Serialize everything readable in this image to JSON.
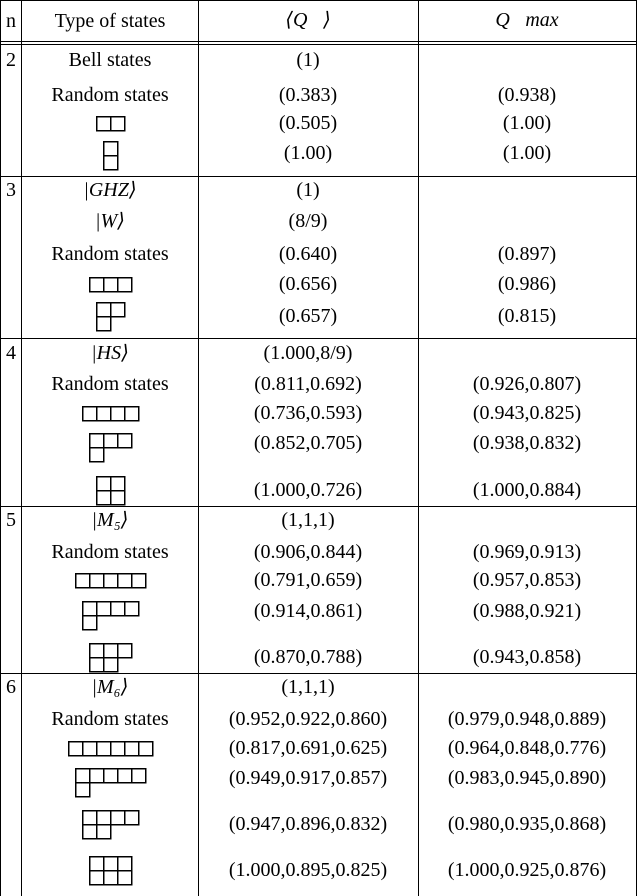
{
  "header": {
    "n": "n",
    "type": "Type of states",
    "q": "⟨Q⃗⟩",
    "qmax": "Q⃗max"
  },
  "groups": [
    {
      "n": "2",
      "rows": [
        {
          "type": "Bell states",
          "q": "(1)",
          "qmax": ""
        },
        {
          "type": "Random states",
          "q": "(0.383)",
          "qmax": "(0.938)"
        },
        {
          "diagram": [
            2
          ],
          "q": "(0.505)",
          "qmax": "(1.00)"
        },
        {
          "diagram": [
            1,
            1
          ],
          "q": "(1.00)",
          "qmax": "(1.00)"
        }
      ]
    },
    {
      "n": "3",
      "rows": [
        {
          "type": "|GHZ⟩",
          "q": "(1)",
          "qmax": ""
        },
        {
          "type": "|W⟩",
          "q": "(8/9)",
          "qmax": ""
        },
        {
          "type": "Random states",
          "q": "(0.640)",
          "qmax": "(0.897)"
        },
        {
          "diagram": [
            3
          ],
          "q": "(0.656)",
          "qmax": "(0.986)"
        },
        {
          "diagram": [
            2,
            1
          ],
          "q": "(0.657)",
          "qmax": "(0.815)"
        }
      ]
    },
    {
      "n": "4",
      "rows": [
        {
          "type": "|HS⟩",
          "q": "(1.000,8/9)",
          "qmax": ""
        },
        {
          "type": "Random states",
          "q": "(0.811,0.692)",
          "qmax": "(0.926,0.807)"
        },
        {
          "diagram": [
            4
          ],
          "q": "(0.736,0.593)",
          "qmax": "(0.943,0.825)"
        },
        {
          "diagram": [
            3,
            1
          ],
          "q": "(0.852,0.705)",
          "qmax": "(0.938,0.832)"
        },
        {
          "diagram": [
            2,
            2
          ],
          "q": "(1.000,0.726)",
          "qmax": "(1.000,0.884)"
        }
      ]
    },
    {
      "n": "5",
      "rows": [
        {
          "type": "|M₅⟩",
          "q": "(1,1,1)",
          "qmax": ""
        },
        {
          "type": "Random states",
          "q": "(0.906,0.844)",
          "qmax": "(0.969,0.913)"
        },
        {
          "diagram": [
            5
          ],
          "q": "(0.791,0.659)",
          "qmax": "(0.957,0.853)"
        },
        {
          "diagram": [
            4,
            1
          ],
          "q": "(0.914,0.861)",
          "qmax": "(0.988,0.921)"
        },
        {
          "diagram": [
            3,
            2
          ],
          "q": "(0.870,0.788)",
          "qmax": "(0.943,0.858)"
        }
      ]
    },
    {
      "n": "6",
      "rows": [
        {
          "type": "|M₆⟩",
          "q": "(1,1,1)",
          "qmax": ""
        },
        {
          "type": "Random states",
          "q": "(0.952,0.922,0.860)",
          "qmax": "(0.979,0.948,0.889)"
        },
        {
          "diagram": [
            6
          ],
          "q": "(0.817,0.691,0.625)",
          "qmax": "(0.964,0.848,0.776)"
        },
        {
          "diagram": [
            5,
            1
          ],
          "q": "(0.949,0.917,0.857)",
          "qmax": "(0.983,0.945,0.890)"
        },
        {
          "diagram": [
            4,
            2
          ],
          "q": "(0.947,0.896,0.832)",
          "qmax": "(0.980,0.935,0.868)"
        },
        {
          "diagram": [
            3,
            3
          ],
          "q": "(1.000,0.895,0.825)",
          "qmax": "(1.000,0.925,0.876)"
        }
      ]
    }
  ]
}
